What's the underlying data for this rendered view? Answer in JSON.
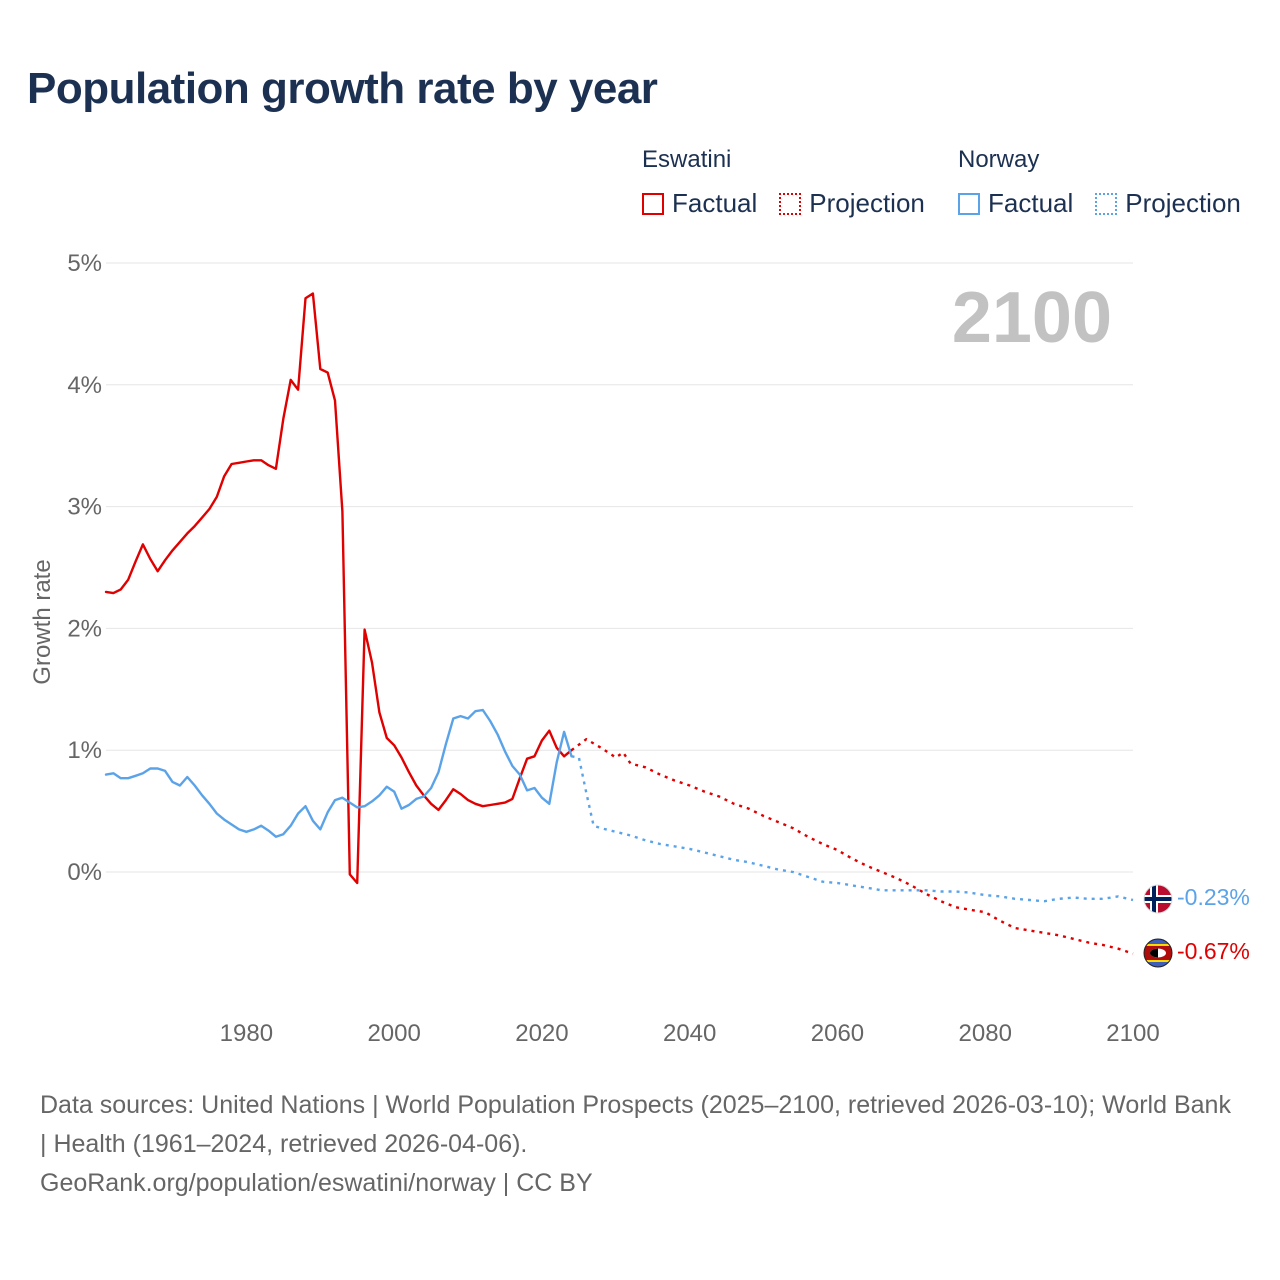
{
  "title": "Population growth rate by year",
  "legend": {
    "groups": [
      {
        "name": "Eswatini",
        "factual_label": "Factual",
        "projection_label": "Projection",
        "color": "#e00000"
      },
      {
        "name": "Norway",
        "factual_label": "Factual",
        "projection_label": "Projection",
        "color": "#5ba3e8"
      }
    ]
  },
  "footer": {
    "sources": "Data sources: United Nations | World Population Prospects (2025–2100, retrieved 2026-03-10); World Bank | Health (1961–2024, retrieved 2026-04-06).",
    "credit": "GeoRank.org/population/eswatini/norway | CC BY"
  },
  "chart_data": {
    "type": "line",
    "title": "Population growth rate by year",
    "xlabel": "",
    "ylabel": "Growth rate",
    "xlim": [
      1961,
      2100
    ],
    "ylim": [
      -1.1,
      5.1
    ],
    "y_ticks": [
      0,
      1,
      2,
      3,
      4,
      5
    ],
    "y_tick_labels": [
      "0%",
      "1%",
      "2%",
      "3%",
      "4%",
      "5%"
    ],
    "x_ticks": [
      1980,
      2000,
      2020,
      2040,
      2060,
      2080,
      2100
    ],
    "x_tick_labels": [
      "1980",
      "2000",
      "2020",
      "2040",
      "2060",
      "2080",
      "2100"
    ],
    "grid": true,
    "year_watermark": "2100",
    "series": [
      {
        "name": "Eswatini",
        "kind": "factual",
        "color": "#e00000",
        "x": [
          1961,
          1962,
          1963,
          1964,
          1965,
          1966,
          1967,
          1968,
          1969,
          1970,
          1971,
          1972,
          1973,
          1974,
          1975,
          1976,
          1977,
          1978,
          1979,
          1980,
          1981,
          1982,
          1983,
          1984,
          1985,
          1986,
          1987,
          1988,
          1989,
          1990,
          1991,
          1992,
          1993,
          1994,
          1995,
          1996,
          1997,
          1998,
          1999,
          2000,
          2001,
          2002,
          2003,
          2004,
          2005,
          2006,
          2007,
          2008,
          2009,
          2010,
          2011,
          2012,
          2013,
          2014,
          2015,
          2016,
          2017,
          2018,
          2019,
          2020,
          2021,
          2022,
          2023,
          2024
        ],
        "values": [
          2.3,
          2.29,
          2.32,
          2.4,
          2.55,
          2.69,
          2.57,
          2.47,
          2.56,
          2.64,
          2.71,
          2.78,
          2.84,
          2.91,
          2.98,
          3.08,
          3.25,
          3.35,
          3.36,
          3.37,
          3.38,
          3.38,
          3.34,
          3.31,
          3.72,
          4.04,
          3.96,
          4.71,
          4.75,
          4.13,
          4.1,
          3.87,
          2.96,
          -0.02,
          -0.09,
          1.99,
          1.72,
          1.31,
          1.1,
          1.04,
          0.94,
          0.82,
          0.71,
          0.63,
          0.56,
          0.51,
          0.59,
          0.68,
          0.64,
          0.59,
          0.56,
          0.54,
          0.55,
          0.56,
          0.57,
          0.6,
          0.77,
          0.93,
          0.95,
          1.08,
          1.16,
          1.02,
          0.95,
          1.0
        ]
      },
      {
        "name": "Eswatini",
        "kind": "projection",
        "color": "#e00000",
        "x": [
          2024,
          2026,
          2028,
          2030,
          2031,
          2032,
          2034,
          2036,
          2038,
          2040,
          2042,
          2044,
          2046,
          2048,
          2050,
          2052,
          2054,
          2056,
          2058,
          2060,
          2062,
          2064,
          2066,
          2068,
          2070,
          2072,
          2074,
          2076,
          2078,
          2080,
          2082,
          2084,
          2086,
          2088,
          2090,
          2092,
          2094,
          2096,
          2098,
          2100
        ],
        "values": [
          1.0,
          1.09,
          1.02,
          0.94,
          0.98,
          0.89,
          0.86,
          0.8,
          0.75,
          0.71,
          0.66,
          0.62,
          0.56,
          0.52,
          0.46,
          0.41,
          0.36,
          0.29,
          0.23,
          0.18,
          0.11,
          0.05,
          0.0,
          -0.05,
          -0.11,
          -0.18,
          -0.24,
          -0.29,
          -0.31,
          -0.33,
          -0.4,
          -0.46,
          -0.48,
          -0.5,
          -0.52,
          -0.55,
          -0.58,
          -0.6,
          -0.63,
          -0.67
        ]
      },
      {
        "name": "Norway",
        "kind": "factual",
        "color": "#5ba3e8",
        "x": [
          1961,
          1962,
          1963,
          1964,
          1965,
          1966,
          1967,
          1968,
          1969,
          1970,
          1971,
          1972,
          1973,
          1974,
          1975,
          1976,
          1977,
          1978,
          1979,
          1980,
          1981,
          1982,
          1983,
          1984,
          1985,
          1986,
          1987,
          1988,
          1989,
          1990,
          1991,
          1992,
          1993,
          1994,
          1995,
          1996,
          1997,
          1998,
          1999,
          2000,
          2001,
          2002,
          2003,
          2004,
          2005,
          2006,
          2007,
          2008,
          2009,
          2010,
          2011,
          2012,
          2013,
          2014,
          2015,
          2016,
          2017,
          2018,
          2019,
          2020,
          2021,
          2022,
          2023,
          2024
        ],
        "values": [
          0.8,
          0.81,
          0.77,
          0.77,
          0.79,
          0.81,
          0.85,
          0.85,
          0.83,
          0.74,
          0.71,
          0.78,
          0.71,
          0.63,
          0.56,
          0.48,
          0.43,
          0.39,
          0.35,
          0.33,
          0.35,
          0.38,
          0.34,
          0.29,
          0.31,
          0.38,
          0.48,
          0.54,
          0.42,
          0.35,
          0.49,
          0.59,
          0.61,
          0.57,
          0.53,
          0.54,
          0.58,
          0.63,
          0.7,
          0.66,
          0.52,
          0.55,
          0.6,
          0.62,
          0.69,
          0.82,
          1.05,
          1.26,
          1.28,
          1.26,
          1.32,
          1.33,
          1.24,
          1.13,
          0.99,
          0.87,
          0.8,
          0.67,
          0.69,
          0.61,
          0.56,
          0.9,
          1.15,
          0.95
        ]
      },
      {
        "name": "Norway",
        "kind": "projection",
        "color": "#5ba3e8",
        "x": [
          2024,
          2025,
          2026,
          2027,
          2028,
          2030,
          2032,
          2034,
          2036,
          2038,
          2040,
          2042,
          2044,
          2046,
          2048,
          2050,
          2052,
          2054,
          2056,
          2058,
          2060,
          2062,
          2064,
          2066,
          2068,
          2070,
          2072,
          2074,
          2076,
          2078,
          2080,
          2082,
          2084,
          2086,
          2088,
          2090,
          2092,
          2094,
          2096,
          2098,
          2100
        ],
        "values": [
          0.95,
          0.94,
          0.65,
          0.38,
          0.36,
          0.33,
          0.3,
          0.26,
          0.23,
          0.21,
          0.19,
          0.16,
          0.13,
          0.1,
          0.08,
          0.05,
          0.02,
          0.0,
          -0.04,
          -0.08,
          -0.09,
          -0.11,
          -0.13,
          -0.15,
          -0.15,
          -0.15,
          -0.15,
          -0.16,
          -0.16,
          -0.17,
          -0.19,
          -0.2,
          -0.22,
          -0.23,
          -0.24,
          -0.22,
          -0.21,
          -0.22,
          -0.22,
          -0.2,
          -0.23
        ]
      }
    ],
    "end_labels": [
      {
        "series": "Norway",
        "text": "-0.23%",
        "value": -0.23,
        "color": "#5ba3e8",
        "flag": "norway-flag"
      },
      {
        "series": "Eswatini",
        "text": "-0.67%",
        "value": -0.67,
        "color": "#e00000",
        "flag": "eswatini-flag"
      }
    ]
  }
}
